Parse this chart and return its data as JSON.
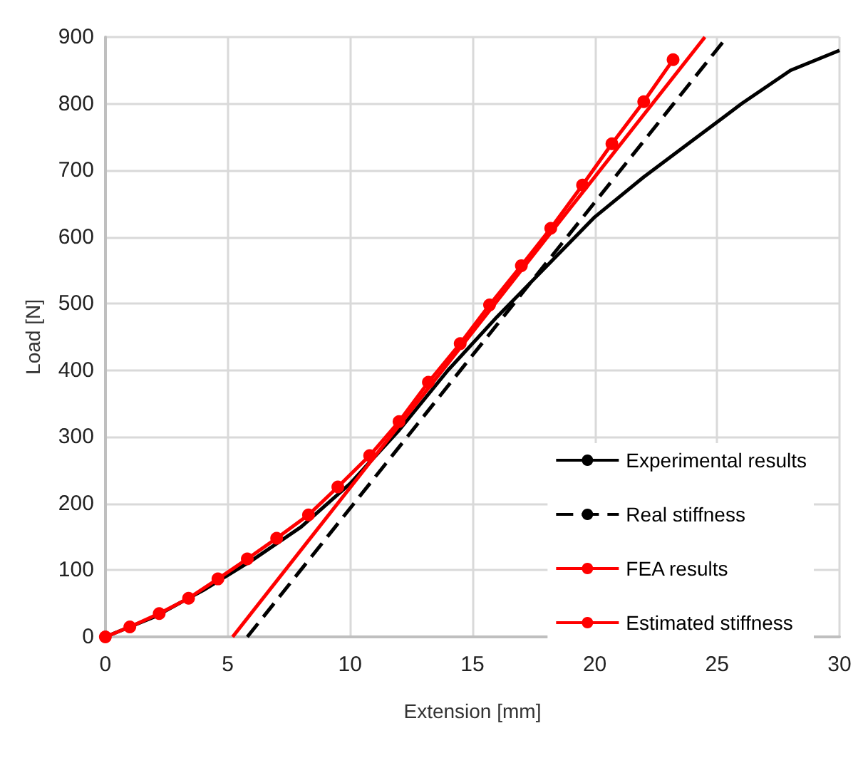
{
  "chart_data": {
    "type": "line",
    "xlabel": "Extension [mm]",
    "ylabel": "Load [N]",
    "xlim": [
      0,
      30
    ],
    "xticks": [
      0,
      5,
      10,
      15,
      20,
      25,
      30
    ],
    "ylim": [
      0,
      900
    ],
    "yticks": [
      0,
      100,
      200,
      300,
      400,
      500,
      600,
      700,
      800,
      900
    ],
    "grid": true,
    "legend": "bottom right",
    "series": [
      {
        "name": "Experimental results",
        "color": "#000000",
        "line_style": "solid",
        "marker": "none",
        "x": [
          0,
          2,
          4,
          6,
          8,
          10,
          12,
          14,
          16,
          18,
          20,
          22,
          24,
          26,
          28,
          29,
          30
        ],
        "values": [
          0,
          30,
          70,
          115,
          165,
          230,
          310,
          400,
          480,
          555,
          630,
          690,
          745,
          800,
          850,
          865,
          880
        ]
      },
      {
        "name": "Real stiffness",
        "color": "#000000",
        "line_style": "dashed",
        "marker": "none",
        "x": [
          5.8,
          25.4
        ],
        "values": [
          0,
          900
        ]
      },
      {
        "name": "FEA results",
        "color": "#ff0000",
        "line_style": "solid",
        "marker": "circle",
        "x": [
          0,
          1,
          2.2,
          3.4,
          4.6,
          5.8,
          7,
          8.3,
          9.5,
          10.8,
          12,
          13.2,
          14.5,
          15.7,
          17,
          18.2,
          19.5,
          20.7,
          22,
          23.2
        ],
        "values": [
          0,
          15,
          35,
          58,
          87,
          117,
          148,
          183,
          225,
          272,
          323,
          382,
          440,
          498,
          557,
          613,
          678,
          740,
          803,
          866
        ]
      },
      {
        "name": "Estimated stiffness",
        "color": "#ff0000",
        "line_style": "solid",
        "marker": "none",
        "x": [
          5.2,
          24.5
        ],
        "values": [
          0,
          900
        ]
      }
    ]
  }
}
